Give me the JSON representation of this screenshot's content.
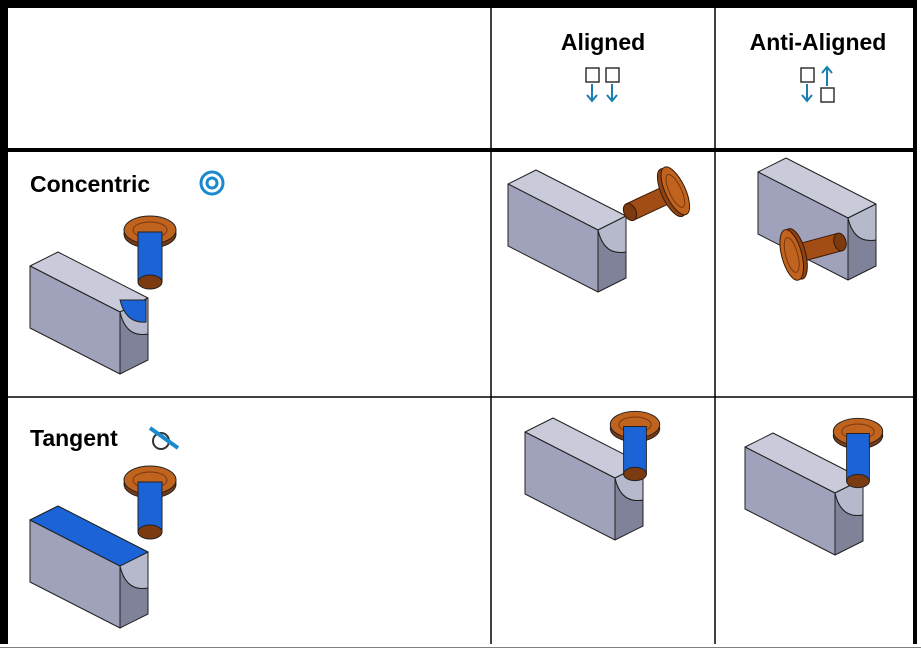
{
  "columns": [
    "Aligned",
    "Anti-Aligned"
  ],
  "rows": [
    {
      "label": "Concentric"
    },
    {
      "label": "Tangent"
    }
  ]
}
